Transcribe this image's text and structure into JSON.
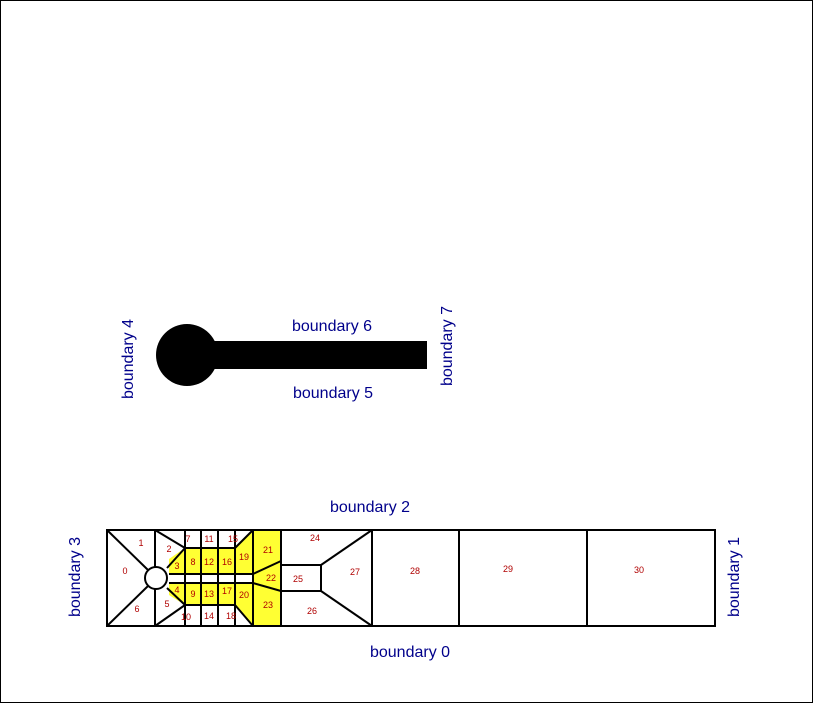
{
  "colors": {
    "boundary_label": "#00008b",
    "cell_number": "#b00000",
    "highlight_fill": "#ffff33",
    "edge": "#000000",
    "solid_shape": "#000000"
  },
  "boundaries": {
    "b0": "boundary 0",
    "b1": "boundary 1",
    "b2": "boundary 2",
    "b3": "boundary 3",
    "b4": "boundary 4",
    "b5": "boundary 5",
    "b6": "boundary 6",
    "b7": "boundary 7"
  },
  "cells": [
    "0",
    "1",
    "2",
    "3",
    "4",
    "5",
    "6",
    "7",
    "8",
    "9",
    "10",
    "11",
    "12",
    "13",
    "14",
    "15",
    "16",
    "17",
    "18",
    "19",
    "20",
    "21",
    "22",
    "23",
    "24",
    "25",
    "26",
    "27",
    "28",
    "29",
    "30"
  ],
  "highlighted_cells": [
    "3",
    "4",
    "8",
    "9",
    "12",
    "13",
    "16",
    "17",
    "19",
    "20",
    "21",
    "22",
    "23"
  ]
}
